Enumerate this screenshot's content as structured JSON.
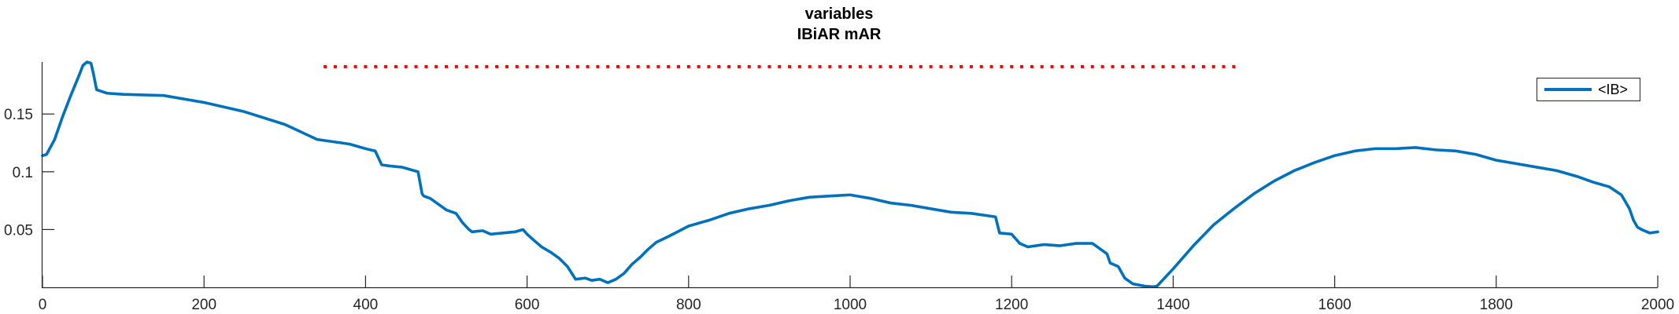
{
  "chart_data": {
    "type": "line",
    "title": "variables",
    "subtitle": "IBiAR mAR",
    "xlabel": "",
    "ylabel": "",
    "xlim": [
      0,
      2000
    ],
    "ylim": [
      0,
      0.195
    ],
    "xticks": [
      0,
      200,
      400,
      600,
      800,
      1000,
      1200,
      1400,
      1600,
      1800,
      2000
    ],
    "yticks": [
      0.05,
      0.1,
      0.15
    ],
    "xtick_labels": [
      "0",
      "200",
      "400",
      "600",
      "800",
      "1000",
      "1200",
      "1400",
      "1600",
      "1800",
      "2000"
    ],
    "ytick_labels": [
      "0.05",
      "0.1",
      "0.15"
    ],
    "grid": false,
    "legend_position": "top-right",
    "series": [
      {
        "name": "<IB>",
        "color": "#0072BD",
        "style": "solid",
        "x": [
          0,
          5,
          15,
          25,
          35,
          45,
          50,
          55,
          60,
          63,
          67,
          80,
          100,
          150,
          200,
          250,
          300,
          340,
          380,
          400,
          412,
          420,
          430,
          445,
          455,
          465,
          470,
          472,
          480,
          488,
          500,
          512,
          520,
          528,
          532,
          545,
          555,
          570,
          585,
          595,
          600,
          608,
          618,
          630,
          640,
          650,
          660,
          672,
          680,
          690,
          700,
          710,
          720,
          730,
          740,
          750,
          760,
          775,
          800,
          825,
          850,
          875,
          900,
          925,
          950,
          975,
          1000,
          1025,
          1050,
          1075,
          1100,
          1125,
          1150,
          1170,
          1180,
          1185,
          1200,
          1210,
          1220,
          1240,
          1260,
          1280,
          1300,
          1310,
          1318,
          1322,
          1332,
          1340,
          1350,
          1365,
          1375,
          1380,
          1400,
          1425,
          1450,
          1475,
          1500,
          1525,
          1550,
          1575,
          1600,
          1625,
          1650,
          1675,
          1700,
          1725,
          1750,
          1775,
          1800,
          1825,
          1850,
          1875,
          1900,
          1920,
          1940,
          1955,
          1965,
          1970,
          1975,
          1980,
          1990,
          2000
        ],
        "y": [
          0.114,
          0.115,
          0.128,
          0.148,
          0.166,
          0.183,
          0.192,
          0.195,
          0.194,
          0.185,
          0.171,
          0.168,
          0.167,
          0.166,
          0.16,
          0.152,
          0.141,
          0.128,
          0.124,
          0.12,
          0.118,
          0.106,
          0.105,
          0.104,
          0.102,
          0.1,
          0.081,
          0.079,
          0.077,
          0.073,
          0.067,
          0.064,
          0.056,
          0.05,
          0.048,
          0.049,
          0.046,
          0.047,
          0.048,
          0.05,
          0.046,
          0.041,
          0.035,
          0.03,
          0.025,
          0.018,
          0.007,
          0.008,
          0.006,
          0.007,
          0.004,
          0.007,
          0.012,
          0.02,
          0.026,
          0.033,
          0.039,
          0.044,
          0.053,
          0.058,
          0.064,
          0.068,
          0.071,
          0.075,
          0.078,
          0.079,
          0.08,
          0.077,
          0.073,
          0.071,
          0.068,
          0.065,
          0.064,
          0.062,
          0.061,
          0.047,
          0.046,
          0.038,
          0.035,
          0.037,
          0.036,
          0.038,
          0.038,
          0.033,
          0.029,
          0.021,
          0.018,
          0.008,
          0.003,
          0.001,
          0.0005,
          0.001,
          0.016,
          0.036,
          0.054,
          0.068,
          0.081,
          0.092,
          0.101,
          0.108,
          0.114,
          0.118,
          0.12,
          0.12,
          0.121,
          0.119,
          0.118,
          0.115,
          0.11,
          0.107,
          0.104,
          0.101,
          0.096,
          0.091,
          0.087,
          0.08,
          0.068,
          0.058,
          0.052,
          0.05,
          0.047,
          0.048
        ]
      },
      {
        "name": "",
        "color": "#FF0000",
        "style": "dotted",
        "x": [
          350,
          1480
        ],
        "y": [
          0.191,
          0.191
        ]
      }
    ]
  },
  "legend": {
    "entries": [
      {
        "label": "<IB>",
        "color": "#0072BD"
      }
    ]
  }
}
